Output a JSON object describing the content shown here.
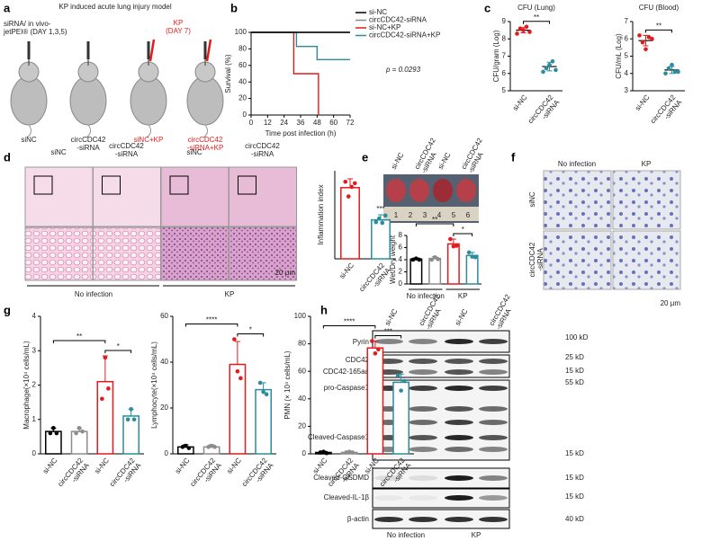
{
  "panel_letters": [
    "a",
    "b",
    "c",
    "d",
    "e",
    "f",
    "g",
    "h"
  ],
  "model": {
    "title": "KP induced acute lung injury model",
    "sirna": "siRNA/ in vivo-\njetPEI® (DAY 1,3,5)",
    "kp": "KP\n(DAY 7)",
    "mice": [
      "siNC",
      "circCDC42\n-siRNA",
      "siNC+KP",
      "circCDC42\n-siRNA+KP"
    ]
  },
  "histology": {
    "columns": [
      "siNC",
      "circCDC42\n-siRNA",
      "siNC",
      "circCDC42\n-siRNA"
    ],
    "groups": [
      "No infection",
      "KP"
    ],
    "scale": "20 μm"
  },
  "lung_photo": {
    "columns": [
      "si-NC",
      "circCDC42\n-siRNA",
      "si-NC",
      "circCDC42\n-siRNA"
    ],
    "ruler": [
      "1",
      "2",
      "3",
      "4",
      "5",
      "6"
    ]
  },
  "cytology": {
    "columns": [
      "No infection",
      "KP"
    ],
    "rows": [
      "siNC",
      "circCDC42\n-siRNA"
    ],
    "scale": "20 μm"
  },
  "western_blot": {
    "columns": [
      "si-NC",
      "circCDC42\n-siRNA",
      "si-NC",
      "circCDC42\n-siRNA"
    ],
    "rows": [
      "Pyrin",
      "CDC42",
      "CDC42-165aa",
      "pro-Caspase1",
      "Cleaved-Caspase1",
      "Cleaved-GSDMD",
      "Cleaved-IL-1β",
      "β-actin"
    ],
    "markers": [
      "100 kD",
      "25 kD",
      "15 kD",
      "55 kD",
      "15 kD",
      "15 kD",
      "15 kD",
      "40 kD"
    ],
    "groups": [
      "No infection",
      "KP"
    ]
  },
  "chart_data": [
    {
      "type": "line",
      "x": [
        0,
        31,
        31,
        33,
        33,
        48,
        48,
        49,
        49,
        72
      ],
      "xlim": [
        0,
        72
      ],
      "xticks": [
        0,
        12,
        24,
        36,
        48,
        60,
        72
      ],
      "ylim": [
        0,
        100
      ],
      "yticks": [
        0,
        20,
        40,
        60,
        80,
        100
      ],
      "xlabel": "Time post infection (h)",
      "ylabel": "Survival (%)",
      "legend": "right",
      "annotation": "p = 0.0293",
      "series": [
        {
          "name": "si-NC",
          "color": "#000000",
          "values": [
            100,
            100,
            100,
            100,
            100,
            100,
            100,
            100,
            100,
            100
          ]
        },
        {
          "name": "circCDC42-siRNA",
          "color": "#8c8c8c",
          "values": [
            100,
            100,
            100,
            100,
            100,
            100,
            100,
            100,
            100,
            100
          ]
        },
        {
          "name": "si-NC+KP",
          "color": "#e41a1c",
          "values": [
            100,
            100,
            50,
            50,
            50,
            50,
            50,
            50,
            0,
            null
          ]
        },
        {
          "name": "circCDC42-siRNA+KP",
          "color": "#2a8c9c",
          "values": [
            100,
            100,
            100,
            100,
            83,
            83,
            67,
            67,
            67,
            67
          ]
        }
      ]
    },
    {
      "type": "dot",
      "title": "CFU (Lung)",
      "ylabel": "CFU/gram (Log)",
      "categories": [
        "si-NC",
        "circCDC42\n-siRNA"
      ],
      "values": [
        8.5,
        6.4
      ],
      "errors": [
        0.15,
        0.25
      ],
      "points": [
        [
          8.3,
          8.6,
          8.5,
          8.7,
          8.4
        ],
        [
          6.1,
          6.3,
          6.5,
          6.7,
          6.2
        ]
      ],
      "colors": [
        "#e41a1c",
        "#2a8c9c"
      ],
      "ylim": [
        5,
        9
      ],
      "yticks": [
        5,
        6,
        7,
        8,
        9
      ],
      "significance": [
        {
          "text": "**",
          "between": [
            0,
            1
          ]
        }
      ]
    },
    {
      "type": "dot",
      "title": "CFU (Blood)",
      "ylabel": "CFU/mL (Log)",
      "categories": [
        "si-NC",
        "circCDC42\n-siRNA"
      ],
      "values": [
        5.9,
        4.2
      ],
      "errors": [
        0.3,
        0.2
      ],
      "points": [
        [
          6.2,
          5.8,
          5.4,
          6.1,
          6.0
        ],
        [
          4.0,
          4.3,
          4.5,
          4.1,
          4.1
        ]
      ],
      "colors": [
        "#e41a1c",
        "#2a8c9c"
      ],
      "ylim": [
        3,
        7
      ],
      "yticks": [
        3,
        4,
        5,
        6,
        7
      ],
      "significance": [
        {
          "text": "**",
          "between": [
            0,
            1
          ]
        }
      ]
    },
    {
      "type": "bar",
      "ylabel": "Inflammation index",
      "categories": [
        "si-NC",
        "circCDC42\n-siRNA"
      ],
      "values": [
        9.7,
        5.3
      ],
      "errors": [
        1.2,
        0.7
      ],
      "points": [
        [
          10.5,
          8.5,
          9.8,
          10.3
        ],
        [
          5.0,
          5.5,
          4.9,
          5.9
        ]
      ],
      "colors": [
        "#e41a1c",
        "#2a8c9c"
      ],
      "ylim": [
        0,
        12
      ],
      "significance": [
        {
          "text": "***",
          "over": 1
        }
      ]
    },
    {
      "type": "bar",
      "ylabel": "Wet/Dry weight",
      "categories": [
        null,
        null,
        null,
        null
      ],
      "values": [
        4.1,
        4.2,
        6.6,
        4.7
      ],
      "errors": [
        0.2,
        0.3,
        0.8,
        0.5
      ],
      "points": [
        [
          4.0,
          4.2,
          4.0
        ],
        [
          4.0,
          4.4,
          4.1
        ],
        [
          7.4,
          6.2,
          6.3
        ],
        [
          5.2,
          4.5,
          4.4
        ]
      ],
      "colors": [
        "#000000",
        "#8c8c8c",
        "#e41a1c",
        "#2a8c9c"
      ],
      "ylim": [
        0,
        8
      ],
      "yticks": [
        0,
        2,
        4,
        6,
        8
      ],
      "groups": [
        "No infection",
        "KP"
      ],
      "significance": [
        {
          "text": "**",
          "between": [
            0,
            2
          ]
        },
        {
          "text": "*",
          "between": [
            2,
            3
          ]
        }
      ]
    },
    {
      "type": "bar",
      "ylabel": "Macrophage(×10⁴ cells/mL)",
      "categories": [
        "si-NC",
        "circCDC42\n-siRNA",
        "si-NC",
        "circCDC42\n-siRNA"
      ],
      "values": [
        0.65,
        0.65,
        2.1,
        1.1
      ],
      "errors": [
        0.1,
        0.1,
        0.75,
        0.2
      ],
      "points": [
        [
          0.6,
          0.75,
          0.6
        ],
        [
          0.6,
          0.75,
          0.65
        ],
        [
          1.6,
          2.8,
          1.9
        ],
        [
          1.0,
          1.3,
          1.0
        ]
      ],
      "colors": [
        "#000000",
        "#8c8c8c",
        "#e41a1c",
        "#2a8c9c"
      ],
      "ylim": [
        0,
        4
      ],
      "yticks": [
        0,
        1,
        2,
        3,
        4
      ],
      "significance": [
        {
          "text": "**",
          "between": [
            0,
            2
          ]
        },
        {
          "text": "*",
          "between": [
            2,
            3
          ]
        }
      ]
    },
    {
      "type": "bar",
      "ylabel": "Lymphocyte(×10⁴ cells/mL)",
      "categories": [
        "si-NC",
        "circCDC42\n-siRNA",
        "si-NC",
        "circCDC42\n-siRNA"
      ],
      "values": [
        3,
        3,
        39,
        28
      ],
      "errors": [
        1,
        1,
        10,
        3
      ],
      "points": [
        [
          3,
          3.5,
          2.5
        ],
        [
          3,
          3.5,
          3
        ],
        [
          50,
          36,
          33
        ],
        [
          31,
          27,
          26
        ]
      ],
      "colors": [
        "#000000",
        "#8c8c8c",
        "#e41a1c",
        "#2a8c9c"
      ],
      "ylim": [
        0,
        60
      ],
      "yticks": [
        0,
        20,
        40,
        60
      ],
      "significance": [
        {
          "text": "****",
          "between": [
            0,
            2
          ]
        },
        {
          "text": "*",
          "between": [
            2,
            3
          ]
        }
      ]
    },
    {
      "type": "bar",
      "ylabel": "PMN (× 10⁴ cells/mL)",
      "categories": [
        "si-NC",
        "circCDC42\n-siRNA",
        "si-NC",
        "circCDC42\n-siRNA"
      ],
      "values": [
        1,
        1,
        77,
        52
      ],
      "errors": [
        1,
        1,
        5,
        6
      ],
      "points": [
        [
          1,
          1.5,
          0.5
        ],
        [
          1,
          1.5,
          1
        ],
        [
          82,
          73,
          76
        ],
        [
          57,
          46,
          53
        ]
      ],
      "colors": [
        "#000000",
        "#8c8c8c",
        "#e41a1c",
        "#2a8c9c"
      ],
      "ylim": [
        0,
        100
      ],
      "yticks": [
        0,
        20,
        40,
        60,
        80,
        100
      ],
      "significance": [
        {
          "text": "****",
          "between": [
            0,
            2
          ]
        },
        {
          "text": "***",
          "between": [
            2,
            3
          ]
        }
      ]
    }
  ]
}
